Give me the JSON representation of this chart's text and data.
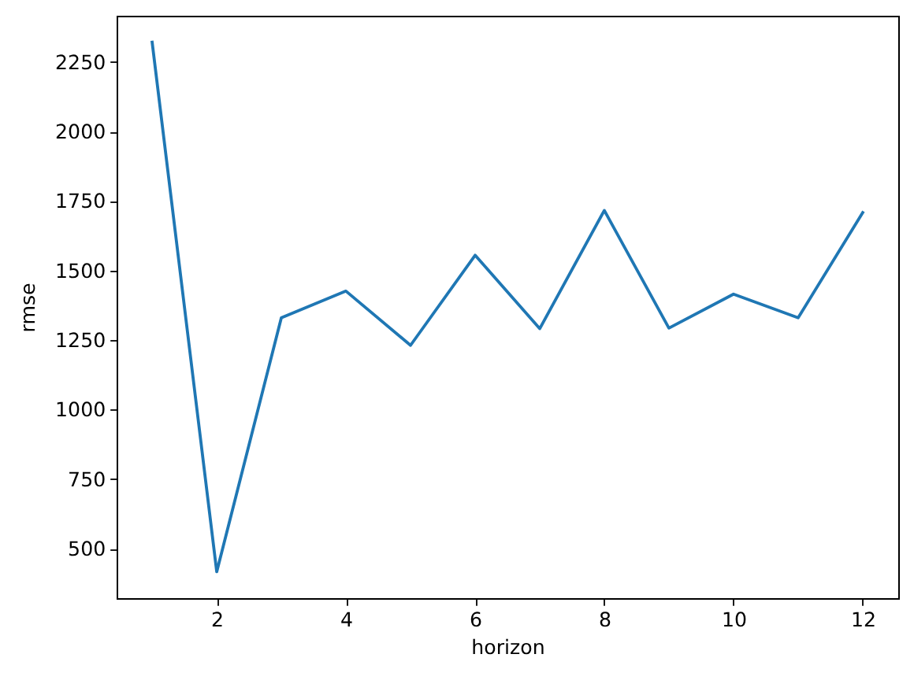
{
  "chart_data": {
    "type": "line",
    "xlabel": "horizon",
    "ylabel": "rmse",
    "x": [
      1,
      2,
      3,
      4,
      5,
      6,
      7,
      8,
      9,
      10,
      11,
      12
    ],
    "series": [
      {
        "color": "#1f77b4",
        "values": [
          2321,
          417,
          1330,
          1426,
          1231,
          1555,
          1291,
          1716,
          1293,
          1415,
          1330,
          1708
        ]
      }
    ],
    "xlim": [
      0.45,
      12.55
    ],
    "ylim": [
      322,
      2416
    ],
    "xticks": [
      2,
      4,
      6,
      8,
      10,
      12
    ],
    "yticks": [
      500,
      750,
      1000,
      1250,
      1500,
      1750,
      2000,
      2250
    ],
    "grid": false,
    "marker": "none",
    "line_style": "solid"
  }
}
